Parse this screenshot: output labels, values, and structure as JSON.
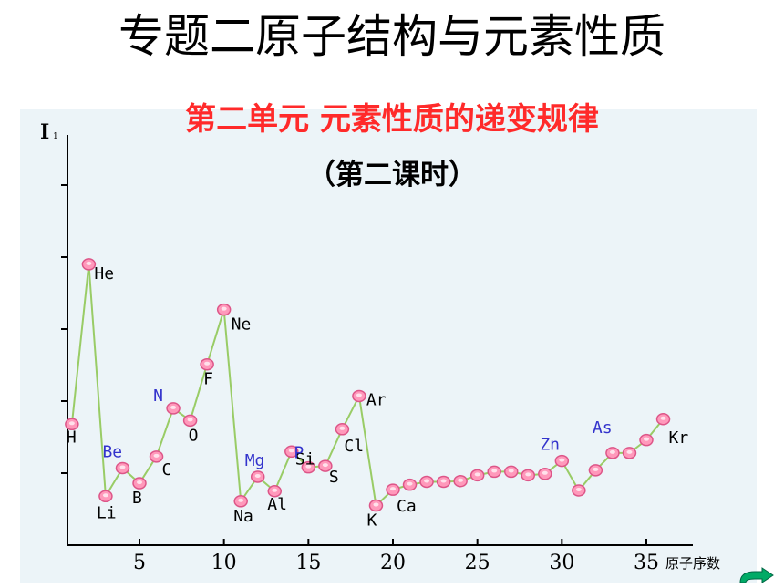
{
  "header": {
    "title": "专题二原子结构与元素性质",
    "subtitle": "第二单元  元素性质的递变规律",
    "period": "（第二课时）"
  },
  "chart_data": {
    "type": "line",
    "ylabel": "I",
    "ylabel_sub": "1",
    "xlabel": "原子序数",
    "xlim": [
      0,
      37
    ],
    "ylim": [
      0,
      5.2
    ],
    "x_ticks": [
      5,
      10,
      15,
      20,
      25,
      30,
      35
    ],
    "grid": false,
    "series": [
      {
        "x": [
          1,
          2,
          3,
          4,
          5,
          6,
          7,
          8,
          9,
          10,
          11,
          12,
          13,
          14,
          15,
          16,
          17,
          18,
          19,
          20,
          21,
          22,
          23,
          24,
          25,
          26,
          27,
          28,
          29,
          30,
          31,
          32,
          33,
          34,
          35,
          36
        ],
        "y": [
          1.68,
          3.9,
          0.68,
          1.07,
          0.86,
          1.23,
          1.9,
          1.73,
          2.51,
          3.27,
          0.61,
          0.95,
          0.75,
          1.3,
          1.08,
          1.1,
          1.61,
          2.07,
          0.55,
          0.77,
          0.84,
          0.88,
          0.88,
          0.89,
          0.97,
          1.02,
          1.02,
          0.97,
          0.99,
          1.17,
          0.76,
          1.04,
          1.28,
          1.28,
          1.46,
          1.75
        ]
      }
    ],
    "element_labels": [
      {
        "x": 1,
        "text": "H",
        "color": "#000000"
      },
      {
        "x": 2,
        "text": "He",
        "color": "#000000"
      },
      {
        "x": 3,
        "text": "Li",
        "color": "#000000"
      },
      {
        "x": 4,
        "text": "Be",
        "color": "#3333cc"
      },
      {
        "x": 5,
        "text": "B",
        "color": "#000000"
      },
      {
        "x": 6,
        "text": "C",
        "color": "#000000"
      },
      {
        "x": 7,
        "text": "N",
        "color": "#3333cc"
      },
      {
        "x": 8,
        "text": "O",
        "color": "#000000"
      },
      {
        "x": 9,
        "text": "F",
        "color": "#000000"
      },
      {
        "x": 10,
        "text": "Ne",
        "color": "#000000"
      },
      {
        "x": 11,
        "text": "Na",
        "color": "#000000"
      },
      {
        "x": 12,
        "text": "Mg",
        "color": "#3333cc"
      },
      {
        "x": 13,
        "text": "Al",
        "color": "#000000"
      },
      {
        "x": 14,
        "text": "Si",
        "color": "#000000"
      },
      {
        "x": 15,
        "text": "P",
        "color": "#3333cc"
      },
      {
        "x": 16,
        "text": "S",
        "color": "#000000"
      },
      {
        "x": 17,
        "text": "Cl",
        "color": "#000000"
      },
      {
        "x": 18,
        "text": "Ar",
        "color": "#000000"
      },
      {
        "x": 19,
        "text": "K",
        "color": "#000000"
      },
      {
        "x": 20,
        "text": "Ca",
        "color": "#000000"
      },
      {
        "x": 30,
        "text": "Zn",
        "color": "#3333cc"
      },
      {
        "x": 33,
        "text": "As",
        "color": "#3333cc"
      },
      {
        "x": 36,
        "text": "Kr",
        "color": "#000000"
      }
    ],
    "line_color": "#99cc66",
    "point_color": "#ff99bb"
  },
  "navigation": {
    "next_icon": "curved-arrow-next-icon",
    "icon_color": "#00aa66"
  }
}
